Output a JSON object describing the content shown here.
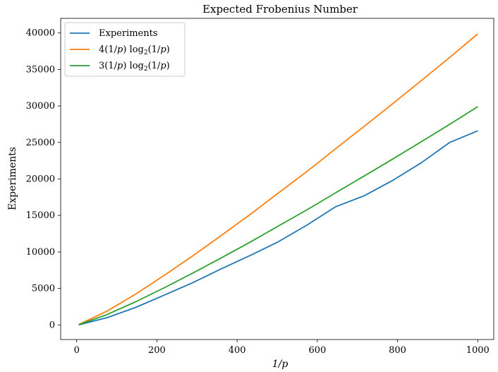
{
  "chart_data": {
    "type": "line",
    "title": "Expected Frobenius Number",
    "xlabel": "1/p",
    "ylabel": "Experiments",
    "xlim": [
      -40,
      1040
    ],
    "ylim": [
      -2000,
      42000
    ],
    "xticks": [
      0,
      200,
      400,
      600,
      800,
      1000
    ],
    "yticks": [
      0,
      5000,
      10000,
      15000,
      20000,
      25000,
      30000,
      35000,
      40000
    ],
    "grid": false,
    "legend_position": "top-left",
    "series": [
      {
        "name": "Experiments",
        "color": "#1f77b4",
        "x": [
          5,
          76,
          147,
          219,
          290,
          361,
          432,
          503,
          575,
          646,
          717,
          788,
          859,
          930,
          1000
        ],
        "y": [
          0,
          1000,
          2400,
          4100,
          5800,
          7700,
          9500,
          11400,
          13700,
          16200,
          17700,
          19800,
          22200,
          25000,
          26600
        ]
      },
      {
        "name": "4(1/p)log2(1/p)",
        "name_parts": {
          "coef": "4",
          "mid": "(1/",
          "p": "p",
          "mid2": ")",
          "log": "log",
          "sub": "2",
          "tail_a": "(1/",
          "tail_b": ")"
        },
        "color": "#ff7f0e",
        "x": [
          5,
          76,
          147,
          219,
          290,
          361,
          432,
          503,
          575,
          646,
          717,
          788,
          859,
          930,
          1000
        ],
        "y": [
          46,
          1900,
          4230,
          6810,
          9490,
          12270,
          15110,
          18080,
          21050,
          24150,
          27210,
          30310,
          33460,
          36640,
          39870
        ]
      },
      {
        "name": "3(1/p)log2(1/p)",
        "name_parts": {
          "coef": "3",
          "mid": "(1/",
          "p": "p",
          "mid2": ")",
          "log": "log",
          "sub": "2",
          "tail_a": "(1/",
          "tail_b": ")"
        },
        "color": "#2ca02c",
        "x": [
          5,
          76,
          147,
          219,
          290,
          361,
          432,
          503,
          575,
          646,
          717,
          788,
          859,
          930,
          1000
        ],
        "y": [
          35,
          1420,
          3170,
          5110,
          7120,
          9200,
          11330,
          13560,
          15790,
          18110,
          20410,
          22730,
          25090,
          27480,
          29900
        ]
      }
    ]
  }
}
